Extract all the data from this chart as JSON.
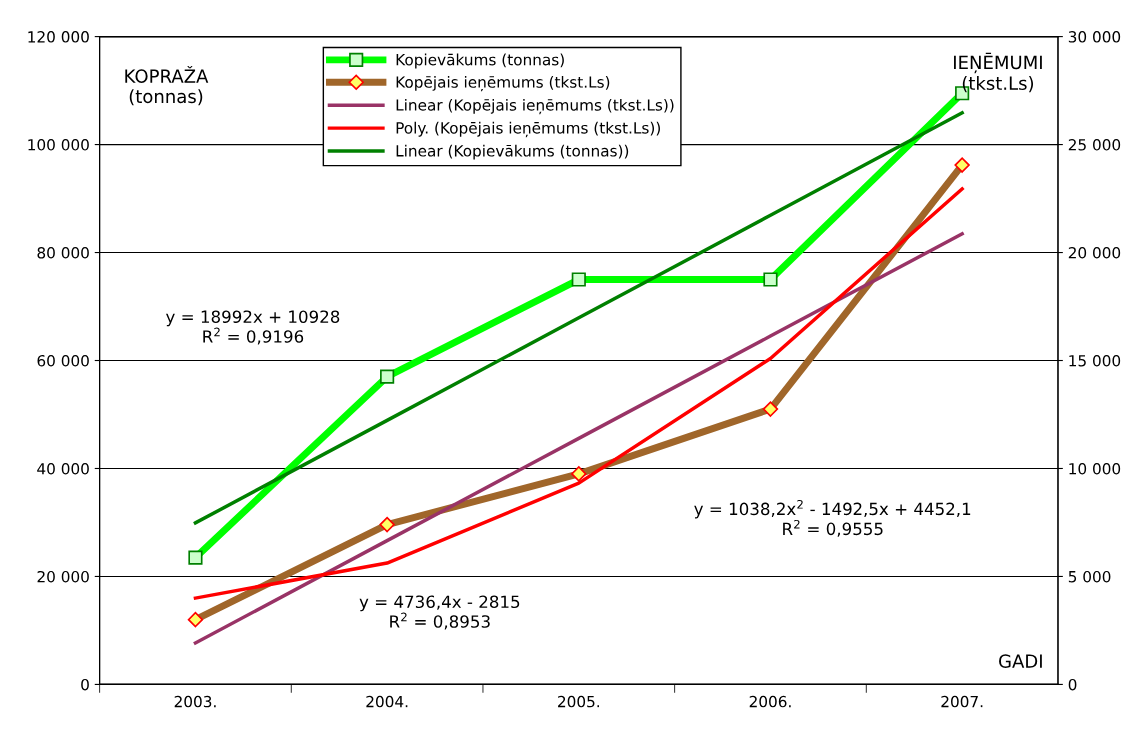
{
  "chart_data": {
    "type": "line",
    "categories": [
      "2003.",
      "2004.",
      "2005.",
      "2006.",
      "2007."
    ],
    "xlabel": "GADI",
    "ylabel": "KOPRAŽA\n(tonnas)",
    "y2label": "IEŅĒMUMI\n(tkst.Ls)",
    "ylim": [
      0,
      120000
    ],
    "yticks": [
      {
        "value": 0,
        "label": "0"
      },
      {
        "value": 20000,
        "label": "20 000"
      },
      {
        "value": 40000,
        "label": "40 000"
      },
      {
        "value": 60000,
        "label": "60 000"
      },
      {
        "value": 80000,
        "label": "80 000"
      },
      {
        "value": 100000,
        "label": "100 000"
      },
      {
        "value": 120000,
        "label": "120 000"
      }
    ],
    "y2lim": [
      0,
      30000
    ],
    "y2ticks": [
      {
        "value": 0,
        "label": "0"
      },
      {
        "value": 5000,
        "label": "5 000"
      },
      {
        "value": 10000,
        "label": "10 000"
      },
      {
        "value": 15000,
        "label": "15 000"
      },
      {
        "value": 20000,
        "label": "20 000"
      },
      {
        "value": 25000,
        "label": "25 000"
      },
      {
        "value": 30000,
        "label": "30 000"
      }
    ],
    "grid": "y",
    "legend": "top",
    "line_style": "solid",
    "series": [
      {
        "name": "Kopievākums (tonnas)",
        "color": "#00ff00",
        "marker": "square",
        "values": [
          23500,
          57000,
          75000,
          75000,
          109500
        ]
      },
      {
        "name": "Kopējais ieņēmums (tkst.Ls)",
        "color": "#a0662a",
        "marker": "diamond",
        "axis": "y2",
        "values": [
          3000,
          7400,
          9750,
          12750,
          24050
        ]
      },
      {
        "name": "Linear (Kopējais ieņēmums (tkst.Ls))",
        "color": "#993366",
        "marker": "none",
        "axis": "y2",
        "values": [
          1921,
          6658,
          11394,
          16131,
          20867
        ]
      },
      {
        "name": "Poly. (Kopējais ieņēmums (tkst.Ls))",
        "color": "#ff0000",
        "marker": "none",
        "axis": "y2",
        "values": [
          3998,
          5621,
          9320,
          15096,
          22949
        ]
      },
      {
        "name": "Linear (Kopievākums (tonnas))",
        "color": "#008000",
        "marker": "none",
        "values": [
          29920,
          48912,
          67904,
          86896,
          105888
        ]
      }
    ],
    "annotations": [
      "y = 18992x + 10928\nR$^{2}$ = 0,9196",
      "y = 1038,2x$^{2}$ - 1492,5x + 4452,1\nR$^{2}$ = 0,9555",
      "y = 4736,4x - 2815\nR$^{2}$ = 0,8953"
    ]
  }
}
